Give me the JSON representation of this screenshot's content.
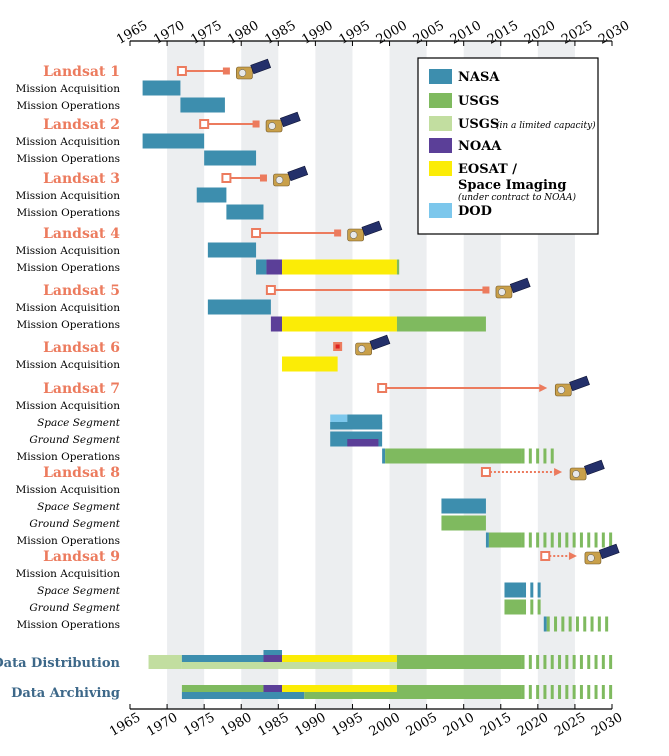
{
  "chart_data": {
    "type": "timeline",
    "x_range": [
      1965,
      2030
    ],
    "x_ticks": [
      1965,
      1970,
      1975,
      1980,
      1985,
      1990,
      1995,
      2000,
      2005,
      2010,
      2015,
      2020,
      2025,
      2030
    ],
    "shaded_bands": [
      [
        1970,
        1975
      ],
      [
        1980,
        1985
      ],
      [
        1990,
        1995
      ],
      [
        2000,
        2005
      ],
      [
        2010,
        2015
      ],
      [
        2020,
        2025
      ]
    ],
    "colors": {
      "NASA": "#3d8eae",
      "USGS": "#7fba5f",
      "USGS_limited": "#c2dea0",
      "NOAA": "#5b3f98",
      "EOSAT": "#fbec06",
      "DOD": "#7cc7ec",
      "accent": "#ec7b5e",
      "band": "#eceef0",
      "data_heading": "#3d6889"
    },
    "legend": [
      {
        "key": "NASA",
        "label": "NASA",
        "note": ""
      },
      {
        "key": "USGS",
        "label": "USGS",
        "note": ""
      },
      {
        "key": "USGS_limited",
        "label": "USGS",
        "note": "(in a limited capacity)"
      },
      {
        "key": "NOAA",
        "label": "NOAA",
        "note": ""
      },
      {
        "key": "EOSAT",
        "label": "EOSAT /",
        "label2": "Space Imaging",
        "note": "(under contract to NOAA)"
      },
      {
        "key": "DOD",
        "label": "DOD",
        "note": ""
      }
    ],
    "missions": [
      {
        "name": "Landsat 1",
        "launch": 1972,
        "end": 1978,
        "line_style": "solid",
        "end_marker": "square",
        "rows": [
          {
            "label": "Mission Acquisition",
            "style": "normal",
            "bars": [
              {
                "start": 1966.7,
                "end": 1971.8,
                "agency": "NASA"
              }
            ]
          },
          {
            "label": "Mission Operations",
            "style": "normal",
            "bars": [
              {
                "start": 1971.8,
                "end": 1977.8,
                "agency": "NASA"
              }
            ]
          }
        ]
      },
      {
        "name": "Landsat 2",
        "launch": 1975,
        "end": 1982,
        "line_style": "solid",
        "end_marker": "square",
        "rows": [
          {
            "label": "Mission Acquisition",
            "style": "normal",
            "bars": [
              {
                "start": 1966.7,
                "end": 1975
              },
              {
                "agency": "NASA"
              }
            ]
          },
          {
            "label": "Mission Operations",
            "style": "normal",
            "bars": [
              {
                "start": 1975,
                "end": 1982,
                "agency": "NASA"
              }
            ]
          }
        ]
      },
      {
        "name": "Landsat 3",
        "launch": 1978,
        "end": 1983,
        "line_style": "solid",
        "end_marker": "square",
        "rows": [
          {
            "label": "Mission Acquisition",
            "style": "normal",
            "bars": [
              {
                "start": 1974,
                "end": 1978,
                "agency": "NASA"
              }
            ]
          },
          {
            "label": "Mission Operations",
            "style": "normal",
            "bars": [
              {
                "start": 1978,
                "end": 1983,
                "agency": "NASA"
              }
            ]
          }
        ]
      },
      {
        "name": "Landsat 4",
        "launch": 1982,
        "end": 1993,
        "line_style": "solid",
        "end_marker": "square",
        "rows": [
          {
            "label": "Mission Acquisition",
            "style": "normal",
            "bars": [
              {
                "start": 1975.5,
                "end": 1982,
                "agency": "NASA"
              }
            ]
          },
          {
            "label": "Mission Operations",
            "style": "normal",
            "bars": [
              {
                "start": 1982,
                "end": 1983.4,
                "agency": "NASA"
              },
              {
                "start": 1983.4,
                "end": 1985.5,
                "agency": "NOAA"
              },
              {
                "start": 1985.5,
                "end": 2001,
                "agency": "EOSAT"
              },
              {
                "start": 2001,
                "end": 2001.3,
                "agency": "USGS"
              }
            ]
          }
        ]
      },
      {
        "name": "Landsat 5",
        "launch": 1984,
        "end": 2013,
        "line_style": "solid",
        "end_marker": "square",
        "rows": [
          {
            "label": "Mission Acquisition",
            "style": "normal",
            "bars": [
              {
                "start": 1975.5,
                "end": 1984,
                "agency": "NASA"
              }
            ]
          },
          {
            "label": "Mission Operations",
            "style": "normal",
            "bars": [
              {
                "start": 1984,
                "end": 1985.5,
                "agency": "NOAA"
              },
              {
                "start": 1985.5,
                "end": 2001,
                "agency": "EOSAT"
              },
              {
                "start": 2001,
                "end": 2013,
                "agency": "USGS"
              }
            ]
          }
        ]
      },
      {
        "name": "Landsat 6",
        "launch": 1993,
        "end": null,
        "line_style": "failed",
        "end_marker": "",
        "rows": [
          {
            "label": "Mission Acquisition",
            "style": "normal",
            "bars": [
              {
                "start": 1985.5,
                "end": 1993,
                "agency": "EOSAT"
              }
            ]
          }
        ]
      },
      {
        "name": "Landsat 7",
        "launch": 1999,
        "end": 2021,
        "line_style": "solid",
        "end_marker": "arrow",
        "rows": [
          {
            "label": "Mission Acquisition",
            "style": "normal",
            "bars": []
          },
          {
            "label": "Space Segment",
            "style": "italic",
            "bars": [
              {
                "start": 1992,
                "end": 1994.3,
                "agency": "DOD"
              },
              {
                "start": 1994.3,
                "end": 1999,
                "agency": "NASA"
              },
              {
                "start": 1992,
                "end": 1999,
                "agency": "NASA",
                "half": "bottom"
              }
            ]
          },
          {
            "label": "Ground Segment",
            "style": "italic",
            "bars": [
              {
                "start": 1992,
                "end": 1999,
                "agency": "NASA"
              },
              {
                "start": 1994.3,
                "end": 1998.5,
                "agency": "NOAA",
                "half": "bottom"
              }
            ]
          },
          {
            "label": "Mission Operations",
            "style": "normal",
            "bars": [
              {
                "start": 1999,
                "end": 1999.4,
                "agency": "NASA"
              },
              {
                "start": 1999.4,
                "end": 2017.8,
                "agency": "USGS"
              },
              {
                "start": 2017.8,
                "end": 2022,
                "agency": "USGS",
                "dashed": true
              }
            ]
          }
        ]
      },
      {
        "name": "Landsat 8",
        "launch": 2013,
        "end": 2023,
        "line_style": "dotted",
        "end_marker": "arrow",
        "rows": [
          {
            "label": "Mission Acquisition",
            "style": "normal",
            "bars": []
          },
          {
            "label": "Space Segment",
            "style": "italic",
            "bars": [
              {
                "start": 2007,
                "end": 2013,
                "agency": "NASA"
              }
            ]
          },
          {
            "label": "Ground Segment",
            "style": "italic",
            "bars": [
              {
                "start": 2007,
                "end": 2013,
                "agency": "USGS"
              }
            ]
          },
          {
            "label": "Mission Operations",
            "style": "normal",
            "bars": [
              {
                "start": 2013,
                "end": 2013.4,
                "agency": "NASA"
              },
              {
                "start": 2013.4,
                "end": 2017.8,
                "agency": "USGS"
              },
              {
                "start": 2017.8,
                "end": 2030,
                "agency": "USGS",
                "dashed": true
              }
            ]
          }
        ]
      },
      {
        "name": "Landsat 9",
        "launch": 2021,
        "end": 2025,
        "line_style": "dotted",
        "end_marker": "arrow",
        "rows": [
          {
            "label": "Mission Acquisition",
            "style": "normal",
            "bars": []
          },
          {
            "label": "Space Segment",
            "style": "italic",
            "bars": [
              {
                "start": 2015.5,
                "end": 2018,
                "agency": "NASA"
              },
              {
                "start": 2018,
                "end": 2020.8,
                "agency": "NASA",
                "dashed": true
              }
            ]
          },
          {
            "label": "Ground Segment",
            "style": "italic",
            "bars": [
              {
                "start": 2015.5,
                "end": 2018,
                "agency": "USGS"
              },
              {
                "start": 2018,
                "end": 2020.8,
                "agency": "USGS",
                "dashed": true
              }
            ]
          },
          {
            "label": "Mission Operations",
            "style": "normal",
            "bars": [
              {
                "start": 2020.8,
                "end": 2021.2,
                "agency": "NASA"
              },
              {
                "start": 2021.2,
                "end": 2030,
                "agency": "USGS",
                "dashed": true
              }
            ]
          }
        ]
      }
    ],
    "data_rows": [
      {
        "label": "Data Distribution",
        "bars": [
          {
            "start": 1967.5,
            "end": 1972,
            "agency": "USGS_limited"
          },
          {
            "start": 1972,
            "end": 1983,
            "agency": "NASA",
            "half": "top"
          },
          {
            "start": 1983,
            "end": 1985.5,
            "agency": "NOAA",
            "half": "top"
          },
          {
            "start": 1985.5,
            "end": 2001,
            "agency": "EOSAT",
            "half": "top"
          },
          {
            "start": 1972,
            "end": 2001,
            "agency": "USGS_limited",
            "half": "bottom"
          },
          {
            "start": 2001,
            "end": 2017.8,
            "agency": "USGS"
          },
          {
            "start": 2017.8,
            "end": 2030,
            "agency": "USGS",
            "dashed": true
          },
          {
            "start": 1983,
            "end": 1985.5,
            "agency": "NASA",
            "half": "cap"
          }
        ]
      },
      {
        "label": "Data Archiving",
        "bars": [
          {
            "start": 1972,
            "end": 1983,
            "agency": "USGS",
            "half": "top"
          },
          {
            "start": 1983,
            "end": 1985.5,
            "agency": "NOAA",
            "half": "top"
          },
          {
            "start": 1985.5,
            "end": 2001,
            "agency": "EOSAT",
            "half": "top"
          },
          {
            "start": 1972,
            "end": 1988.5,
            "agency": "NASA",
            "half": "bottom"
          },
          {
            "start": 1988.5,
            "end": 2017.8,
            "agency": "USGS",
            "half": "bottom"
          },
          {
            "start": 2001,
            "end": 2017.8,
            "agency": "USGS",
            "half": "top"
          },
          {
            "start": 2017.8,
            "end": 2030,
            "agency": "USGS",
            "dashed": true
          }
        ]
      }
    ]
  }
}
